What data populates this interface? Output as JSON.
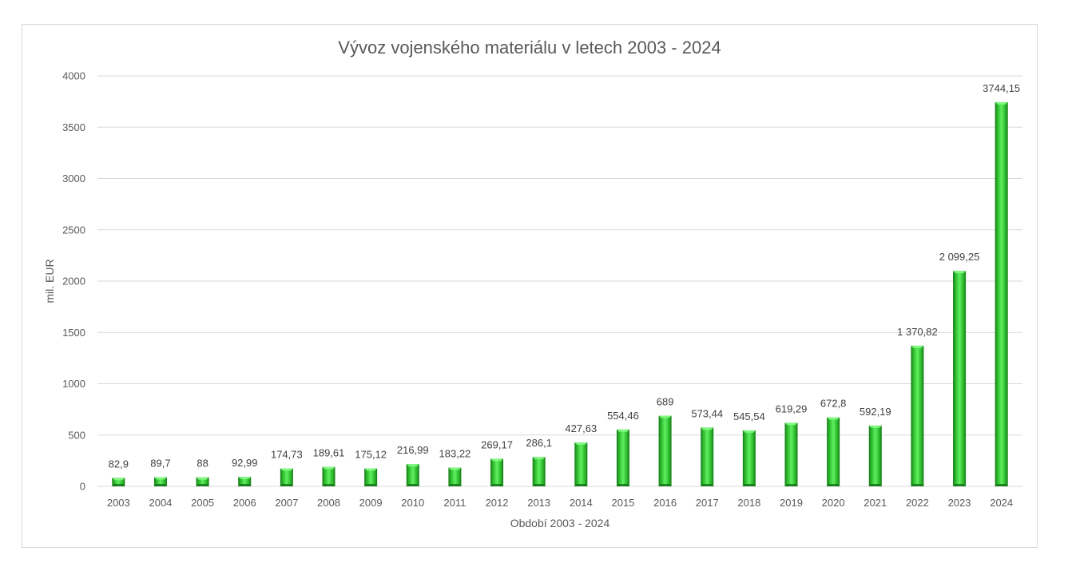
{
  "chart_data": {
    "type": "bar",
    "title": "Vývoz vojenského materiálu v letech 2003 - 2024",
    "xlabel": "Období 2003 - 2024",
    "ylabel": "mil. EUR",
    "ylim": [
      0,
      4000
    ],
    "yticks": [
      "0",
      "500",
      "1000",
      "1500",
      "2000",
      "2500",
      "3000",
      "3500",
      "4000"
    ],
    "grid": true,
    "legend": "none",
    "bar_color": "#2eb82e",
    "categories": [
      "2003",
      "2004",
      "2005",
      "2006",
      "2007",
      "2008",
      "2009",
      "2010",
      "2011",
      "2012",
      "2013",
      "2014",
      "2015",
      "2016",
      "2017",
      "2018",
      "2019",
      "2020",
      "2021",
      "2022",
      "2023",
      "2024"
    ],
    "values": [
      82.9,
      89.7,
      88,
      92.99,
      174.73,
      189.61,
      175.12,
      216.99,
      183.22,
      269.17,
      286.1,
      427.63,
      554.46,
      689,
      573.44,
      545.54,
      619.29,
      672.8,
      592.19,
      1370.82,
      2099.25,
      3744.15
    ],
    "data_labels": [
      "82,9",
      "89,7",
      "88",
      "92,99",
      "174,73",
      "189,61",
      "175,12",
      "216,99",
      "183,22",
      "269,17",
      "286,1",
      "427,63",
      "554,46",
      "689",
      "573,44",
      "545,54",
      "619,29",
      "672,8",
      "592,19",
      "1 370,82",
      "2 099,25",
      "3744,15"
    ]
  }
}
